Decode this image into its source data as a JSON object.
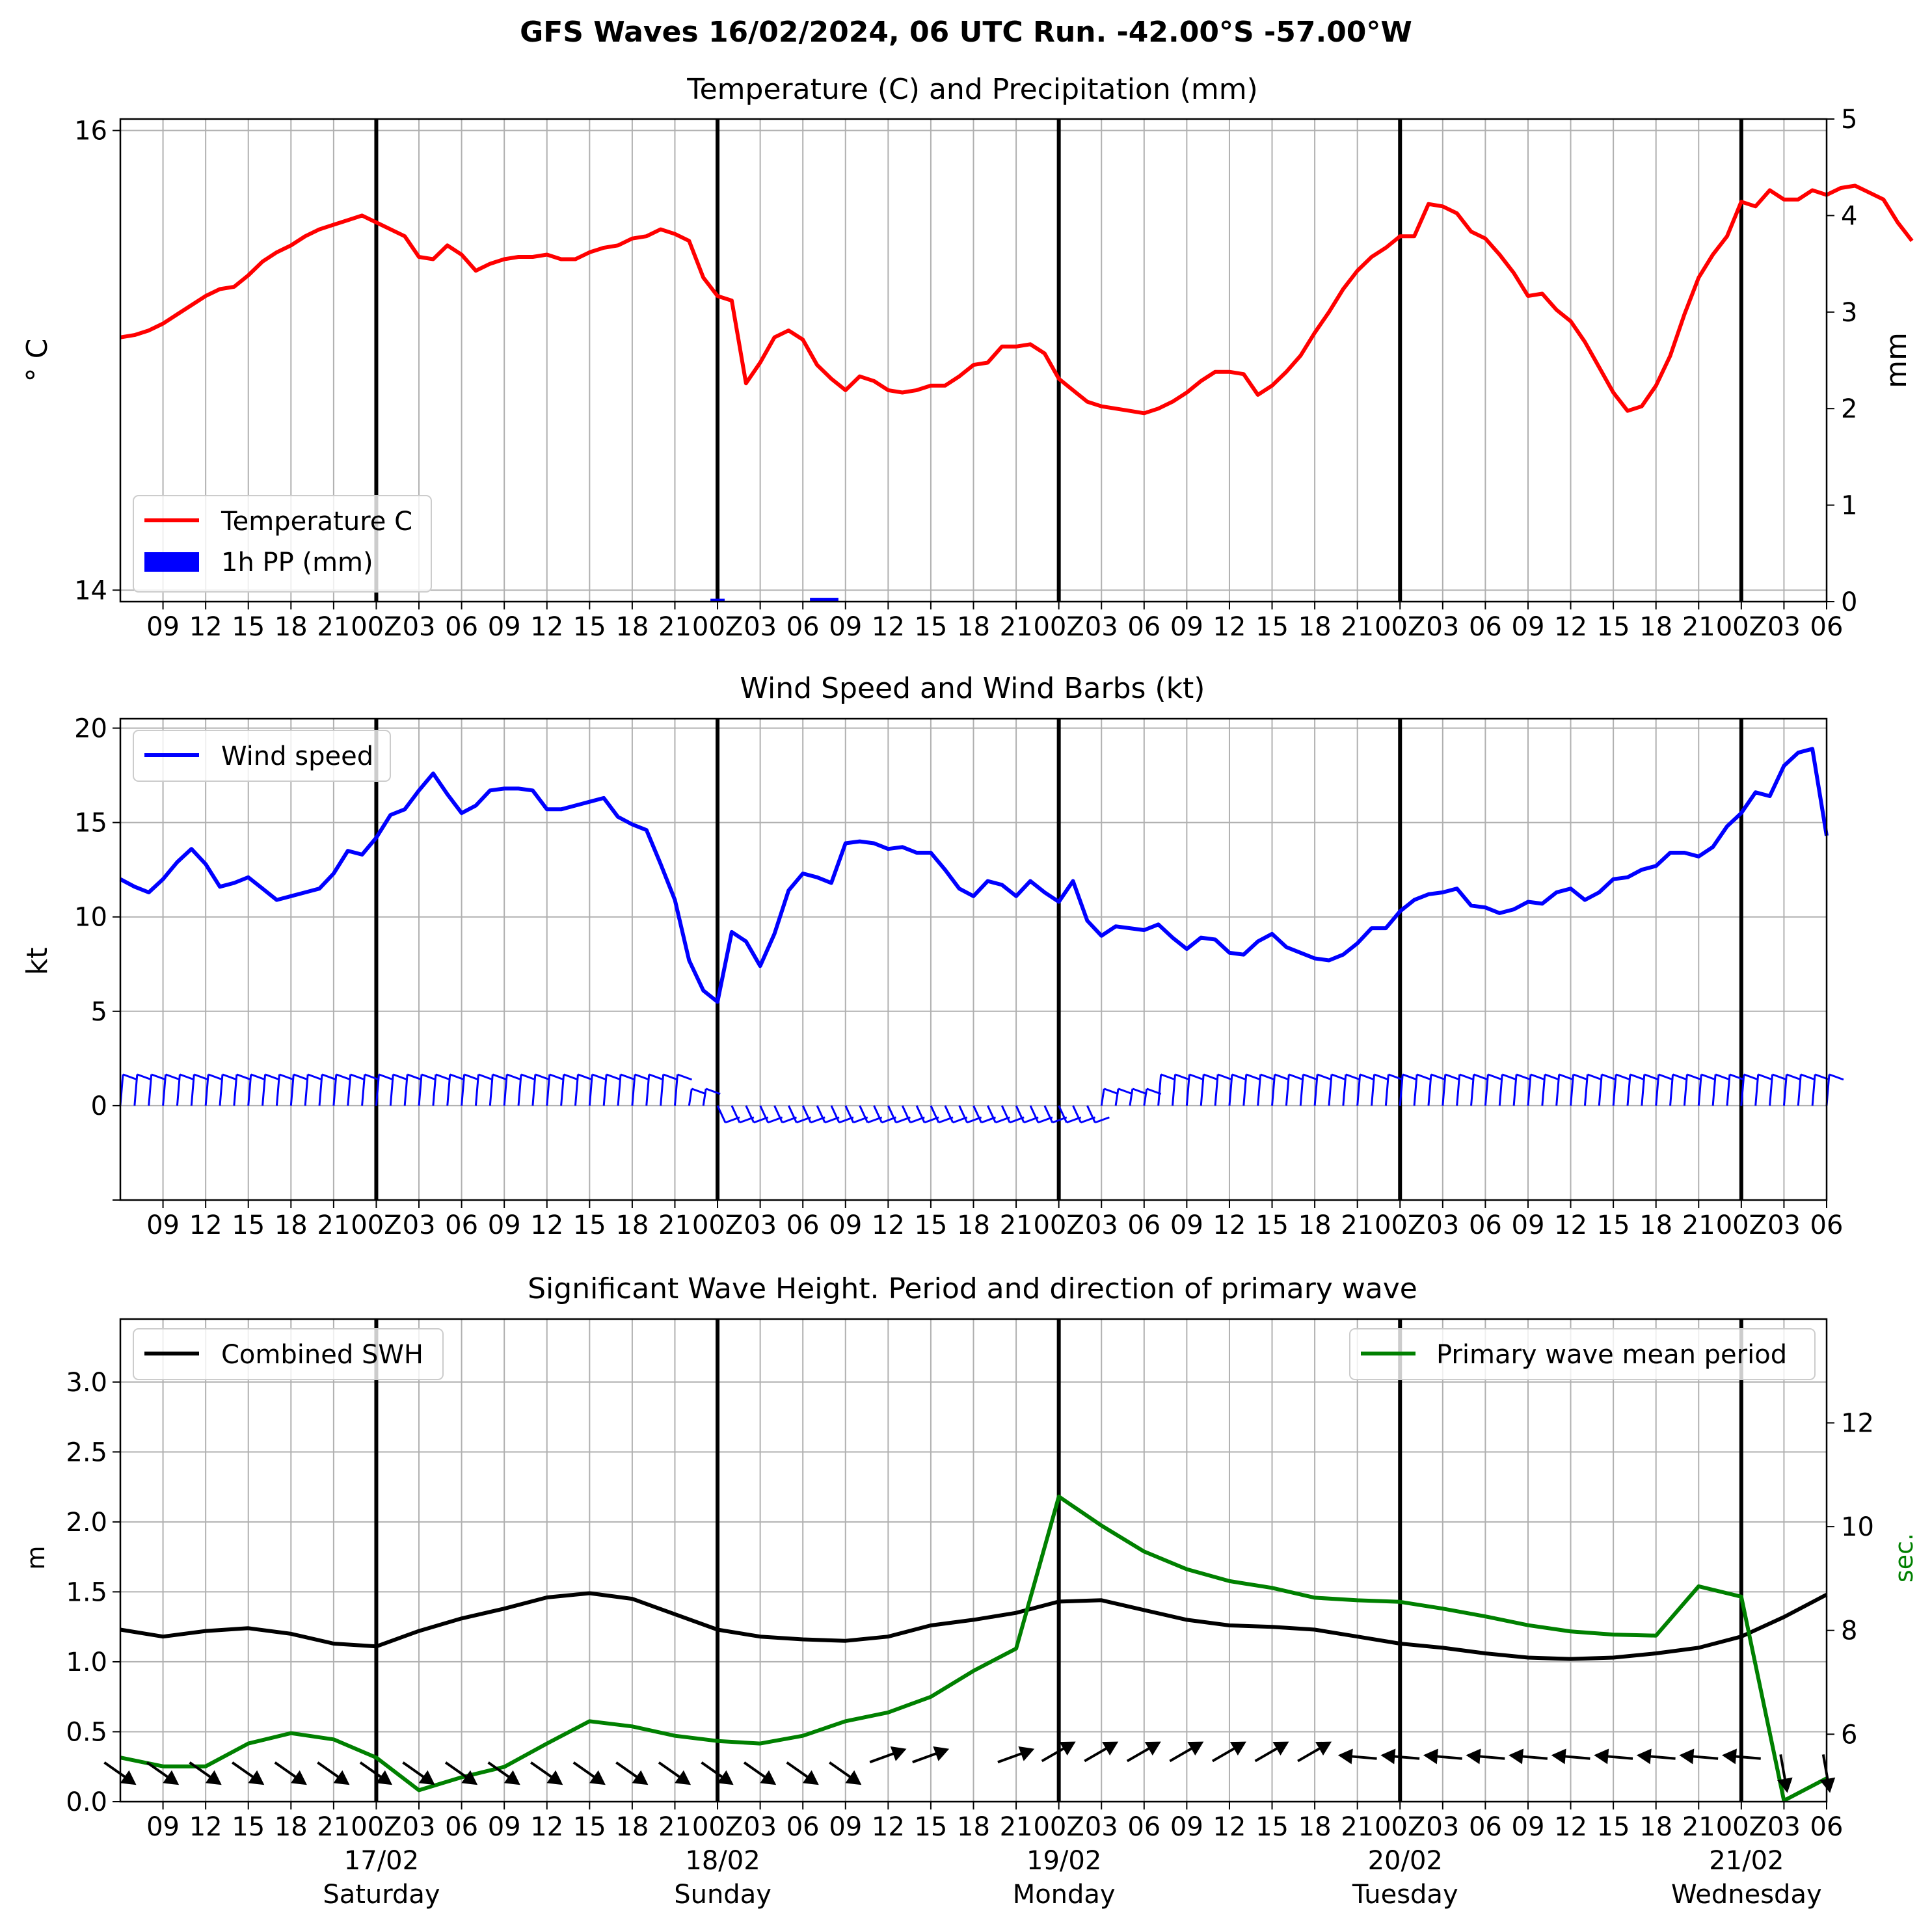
{
  "suptitle": "GFS Waves 16/02/2024, 06 UTC Run. -42.00°S -57.00°W",
  "time_axis": {
    "start": "2024-02-16T06Z",
    "end": "2024-02-21T06Z",
    "tick_labels_top": [
      "09",
      "12",
      "15",
      "18",
      "21",
      "00Z",
      "03",
      "06",
      "09",
      "12",
      "15",
      "18",
      "21",
      "00Z",
      "03",
      "06",
      "09",
      "12",
      "15",
      "18",
      "21",
      "00Z",
      "03",
      "06",
      "09",
      "12",
      "15",
      "18",
      "21",
      "00Z",
      "03",
      "06",
      "09",
      "12",
      "15",
      "18",
      "21",
      "00Z",
      "03",
      "06"
    ],
    "day_labels": [
      {
        "date": "17/02",
        "day": "Saturday"
      },
      {
        "date": "18/02",
        "day": "Sunday"
      },
      {
        "date": "19/02",
        "day": "Monday"
      },
      {
        "date": "20/02",
        "day": "Tuesday"
      },
      {
        "date": "21/02",
        "day": "Wednesday"
      }
    ]
  },
  "chart_data": [
    {
      "type": "line",
      "title": "Temperature (C) and Precipitation (mm)",
      "ylabel": "$^\\circ$C",
      "ylabel_display": "° C",
      "ylabel_right": "mm",
      "ylim": [
        13.95,
        16.05
      ],
      "yticks": [
        14,
        16
      ],
      "ylim_right": [
        0,
        5
      ],
      "yticks_right": [
        0,
        1,
        2,
        3,
        4,
        5
      ],
      "grid": true,
      "legend": "lower-left",
      "series": [
        {
          "name": "Temperature C",
          "color": "#ff0000",
          "step_hours": 1,
          "values": [
            15.1,
            15.11,
            15.13,
            15.16,
            15.2,
            15.24,
            15.28,
            15.31,
            15.32,
            15.37,
            15.43,
            15.47,
            15.5,
            15.54,
            15.57,
            15.59,
            15.61,
            15.63,
            15.6,
            15.57,
            15.54,
            15.45,
            15.44,
            15.5,
            15.46,
            15.39,
            15.42,
            15.44,
            15.45,
            15.45,
            15.46,
            15.44,
            15.44,
            15.47,
            15.49,
            15.5,
            15.53,
            15.54,
            15.57,
            15.55,
            15.52,
            15.36,
            15.28,
            15.26,
            14.9,
            14.99,
            15.1,
            15.13,
            15.09,
            14.98,
            14.92,
            14.87,
            14.93,
            14.91,
            14.87,
            14.86,
            14.87,
            14.89,
            14.89,
            14.93,
            14.98,
            14.99,
            15.06,
            15.06,
            15.07,
            15.03,
            14.92,
            14.87,
            14.82,
            14.8,
            14.79,
            14.78,
            14.77,
            14.79,
            14.82,
            14.86,
            14.91,
            14.95,
            14.95,
            14.94,
            14.85,
            14.89,
            14.95,
            15.02,
            15.12,
            15.21,
            15.31,
            15.39,
            15.45,
            15.49,
            15.54,
            15.54,
            15.68,
            15.67,
            15.64,
            15.56,
            15.53,
            15.46,
            15.38,
            15.28,
            15.29,
            15.22,
            15.17,
            15.08,
            14.97,
            14.86,
            14.78,
            14.8,
            14.89,
            15.02,
            15.2,
            15.36,
            15.46,
            15.54,
            15.69,
            15.67,
            15.74,
            15.7,
            15.7,
            15.74,
            15.72,
            15.75,
            15.76,
            15.73,
            15.7,
            15.6,
            15.52
          ]
        },
        {
          "name": "1h PP (mm)",
          "color": "#0000ff",
          "type": "bar",
          "axis": "right",
          "bars": [
            {
              "time": "2024-02-18T00Z",
              "value": 0.03
            },
            {
              "time": "2024-02-18T07Z",
              "value": 0.04
            },
            {
              "time": "2024-02-18T08Z",
              "value": 0.04
            }
          ]
        }
      ]
    },
    {
      "type": "line",
      "title": "Wind Speed and Wind Barbs (kt)",
      "ylabel": "kt",
      "ylim": [
        -5,
        20.5
      ],
      "yticks": [
        0,
        5,
        10,
        15,
        20
      ],
      "grid": true,
      "legend": "top-left",
      "series": [
        {
          "name": "Wind speed",
          "color": "#0000ff",
          "step_hours": 1,
          "values": [
            12.0,
            11.6,
            11.3,
            12.0,
            12.9,
            13.6,
            12.8,
            11.6,
            11.8,
            12.1,
            11.5,
            10.9,
            11.1,
            11.3,
            11.5,
            12.3,
            13.5,
            13.3,
            14.2,
            15.4,
            15.7,
            16.7,
            17.6,
            16.5,
            15.5,
            15.9,
            16.7,
            16.8,
            16.8,
            16.7,
            15.7,
            15.7,
            15.9,
            16.1,
            16.3,
            15.3,
            14.9,
            14.6,
            12.8,
            10.9,
            7.7,
            6.1,
            5.5,
            9.2,
            8.7,
            7.4,
            9.1,
            11.4,
            12.3,
            12.1,
            11.8,
            13.9,
            14.0,
            13.9,
            13.6,
            13.7,
            13.4,
            13.4,
            12.5,
            11.5,
            11.1,
            11.9,
            11.7,
            11.1,
            11.9,
            11.3,
            10.8,
            11.9,
            9.8,
            9.0,
            9.5,
            9.4,
            9.3,
            9.6,
            8.9,
            8.3,
            8.9,
            8.8,
            8.1,
            8.0,
            8.7,
            9.1,
            8.4,
            8.1,
            7.8,
            7.7,
            8.0,
            8.6,
            9.4,
            9.4,
            10.3,
            10.9,
            11.2,
            11.3,
            11.5,
            10.6,
            10.5,
            10.2,
            10.4,
            10.8,
            10.7,
            11.3,
            11.5,
            10.9,
            11.3,
            12.0,
            12.1,
            12.5,
            12.7,
            13.4,
            13.4,
            13.2,
            13.7,
            14.8,
            15.5,
            16.6,
            16.4,
            18.0,
            18.7,
            18.9,
            14.3
          ]
        }
      ],
      "barbs": {
        "color": "#0000ff",
        "description": "wind barbs along y≈0 every hour"
      }
    },
    {
      "type": "line",
      "title": "Significant Wave Height. Period and direction of primary wave",
      "ylabel": "m",
      "ylim": [
        0,
        3.45
      ],
      "yticks": [
        0.0,
        0.5,
        1.0,
        1.5,
        2.0,
        2.5,
        3.0
      ],
      "ylabel_right": "sec.",
      "ylim_right": [
        4.7,
        14.0
      ],
      "yticks_right": [
        6,
        8,
        10,
        12
      ],
      "grid": true,
      "legend_left": "top-left",
      "legend_right": "top-right",
      "series": [
        {
          "name": "Combined SWH",
          "color": "#000000",
          "axis": "left",
          "step_hours": 3,
          "values": [
            1.23,
            1.18,
            1.22,
            1.24,
            1.2,
            1.13,
            1.11,
            1.22,
            1.31,
            1.38,
            1.46,
            1.49,
            1.45,
            1.34,
            1.23,
            1.18,
            1.16,
            1.15,
            1.18,
            1.26,
            1.3,
            1.35,
            1.43,
            1.44,
            1.37,
            1.3,
            1.26,
            1.25,
            1.23,
            1.18,
            1.13,
            1.1,
            1.06,
            1.03,
            1.02,
            1.03,
            1.06,
            1.1,
            1.18,
            1.32,
            1.48
          ]
        },
        {
          "name": "Primary wave mean period",
          "color": "#008000",
          "axis": "right",
          "step_hours": 3,
          "values": [
            5.55,
            5.38,
            5.38,
            5.82,
            6.02,
            5.9,
            5.55,
            4.92,
            5.17,
            5.37,
            5.82,
            6.25,
            6.15,
            5.97,
            5.87,
            5.82,
            5.97,
            6.25,
            6.42,
            6.72,
            7.22,
            7.65,
            10.58,
            10.02,
            9.52,
            9.18,
            8.95,
            8.82,
            8.63,
            8.58,
            8.55,
            8.42,
            8.27,
            8.1,
            7.98,
            7.92,
            7.9,
            8.85,
            8.65,
            4.72,
            5.15
          ]
        }
      ],
      "direction_arrows": {
        "color": "#000000",
        "description": "primary wave direction arrows along y≈0.25–0.4 every 3 hours"
      }
    }
  ]
}
